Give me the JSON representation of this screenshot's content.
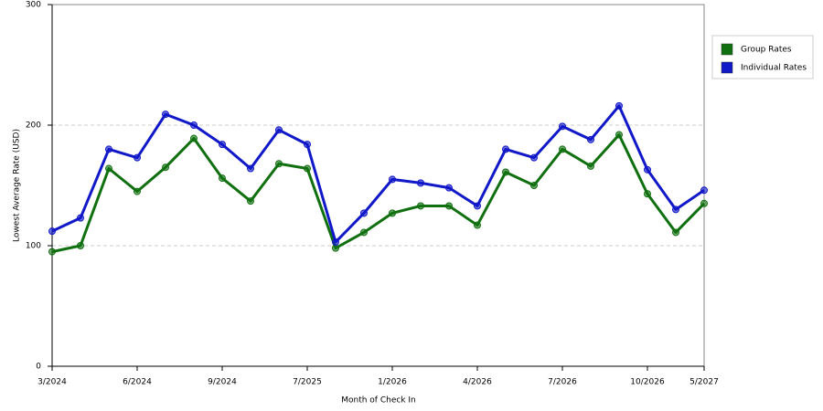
{
  "chart_data": {
    "type": "line",
    "xlabel": "Month of Check In",
    "ylabel": "Lowest Average Rate (USD)",
    "categories": [
      "3/2024",
      null,
      null,
      "6/2024",
      null,
      null,
      "9/2024",
      null,
      null,
      "7/2025",
      null,
      null,
      "1/2026",
      null,
      null,
      "4/2026",
      null,
      null,
      "7/2026",
      null,
      null,
      "10/2026",
      null,
      "5/2027"
    ],
    "series": [
      {
        "name": "Group Rates",
        "color": "#107010",
        "values": [
          95,
          100,
          164,
          145,
          165,
          189,
          156,
          137,
          168,
          164,
          98,
          111,
          127,
          133,
          133,
          117,
          161,
          150,
          180,
          166,
          192,
          143,
          111,
          135
        ]
      },
      {
        "name": "Individual Rates",
        "color": "#1018c8",
        "values": [
          112,
          123,
          180,
          173,
          209,
          200,
          184,
          164,
          196,
          184,
          103,
          127,
          155,
          152,
          148,
          133,
          180,
          173,
          199,
          188,
          216,
          163,
          130,
          146
        ]
      }
    ],
    "ylim": [
      0,
      300
    ],
    "yticks": [
      0,
      100,
      200,
      300
    ],
    "grid": true,
    "legend": "right"
  }
}
